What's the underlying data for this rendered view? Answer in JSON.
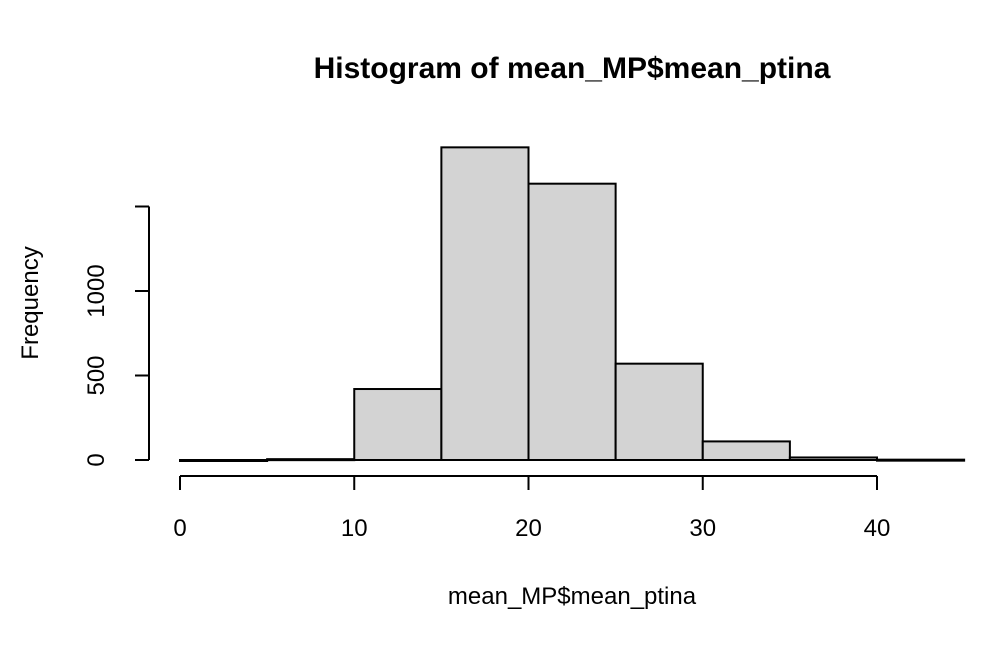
{
  "chart_data": {
    "type": "bar",
    "title": "Histogram of mean_MP$mean_ptina",
    "xlabel": "mean_MP$mean_ptina",
    "ylabel": "Frequency",
    "bins": [
      {
        "x0": 0,
        "x1": 5,
        "count": 0
      },
      {
        "x0": 5,
        "x1": 10,
        "count": 5
      },
      {
        "x0": 10,
        "x1": 15,
        "count": 420
      },
      {
        "x0": 15,
        "x1": 20,
        "count": 1850
      },
      {
        "x0": 20,
        "x1": 25,
        "count": 1635
      },
      {
        "x0": 25,
        "x1": 30,
        "count": 570
      },
      {
        "x0": 30,
        "x1": 35,
        "count": 110
      },
      {
        "x0": 35,
        "x1": 40,
        "count": 15
      },
      {
        "x0": 40,
        "x1": 45,
        "count": 2
      }
    ],
    "xticks": [
      0,
      10,
      20,
      30,
      40
    ],
    "yticks": [
      0,
      500,
      1000,
      1500
    ],
    "ytick_labels": [
      "0",
      "500",
      "1000",
      ""
    ],
    "xlim": [
      0,
      45
    ],
    "ylim": [
      0,
      1850
    ],
    "grid": false
  }
}
